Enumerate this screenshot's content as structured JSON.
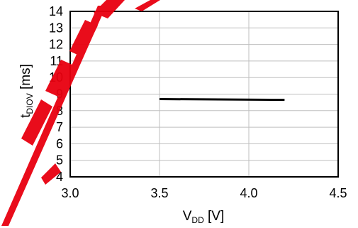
{
  "chart_data": {
    "type": "line",
    "title": "",
    "xlabel": {
      "main": "V",
      "sub": "DD",
      "unit": " [V]"
    },
    "ylabel": {
      "main": "t",
      "sub": "DIOV",
      "unit": " [ms]"
    },
    "xlim": [
      3.0,
      4.5
    ],
    "ylim": [
      4,
      14
    ],
    "x_ticks": [
      "3.0",
      "3.5",
      "4.0",
      "4.5"
    ],
    "y_ticks": [
      "4",
      "5",
      "6",
      "7",
      "8",
      "9",
      "10",
      "11",
      "12",
      "13",
      "14"
    ],
    "grid": true,
    "series": [
      {
        "x": [
          3.5,
          4.2
        ],
        "y": [
          8.7,
          8.65
        ]
      }
    ]
  },
  "colors": {
    "line": "#000000",
    "grid": "#bfbfbf",
    "axis": "#000000",
    "watermark": "#e8000f"
  }
}
